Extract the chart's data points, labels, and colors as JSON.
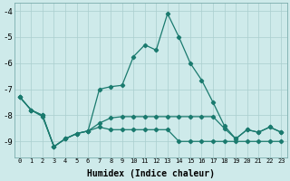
{
  "xlabel": "Humidex (Indice chaleur)",
  "x": [
    0,
    1,
    2,
    3,
    4,
    5,
    6,
    7,
    8,
    9,
    10,
    11,
    12,
    13,
    14,
    15,
    16,
    17,
    18,
    19,
    20,
    21,
    22,
    23
  ],
  "line1": [
    -7.3,
    -7.8,
    -8.0,
    -9.2,
    -8.9,
    -8.7,
    -8.6,
    -7.0,
    -6.9,
    -6.85,
    -5.75,
    -5.3,
    -5.5,
    -4.1,
    -5.0,
    -6.0,
    -6.65,
    -7.5,
    -8.4,
    -8.9,
    -8.55,
    -8.65,
    -8.45,
    -8.65
  ],
  "line2": [
    -7.3,
    -7.8,
    -8.0,
    -9.2,
    -8.9,
    -8.7,
    -8.6,
    -8.3,
    -8.1,
    -8.05,
    -8.05,
    -8.05,
    -8.05,
    -8.05,
    -8.05,
    -8.05,
    -8.05,
    -8.05,
    -8.5,
    -8.9,
    -8.55,
    -8.65,
    -8.45,
    -8.65
  ],
  "line3": [
    -7.3,
    -7.8,
    -8.05,
    -9.2,
    -8.9,
    -8.7,
    -8.6,
    -8.45,
    -8.55,
    -8.55,
    -8.55,
    -8.55,
    -8.55,
    -8.55,
    -9.0,
    -9.0,
    -9.0,
    -9.0,
    -9.0,
    -9.0,
    -9.0,
    -9.0,
    -9.0,
    -9.0
  ],
  "line_color": "#1a7a6e",
  "bg_color": "#ceeaea",
  "grid_color": "#aacece",
  "ylim": [
    -9.6,
    -3.7
  ],
  "yticks": [
    -4,
    -5,
    -6,
    -7,
    -8,
    -9
  ]
}
